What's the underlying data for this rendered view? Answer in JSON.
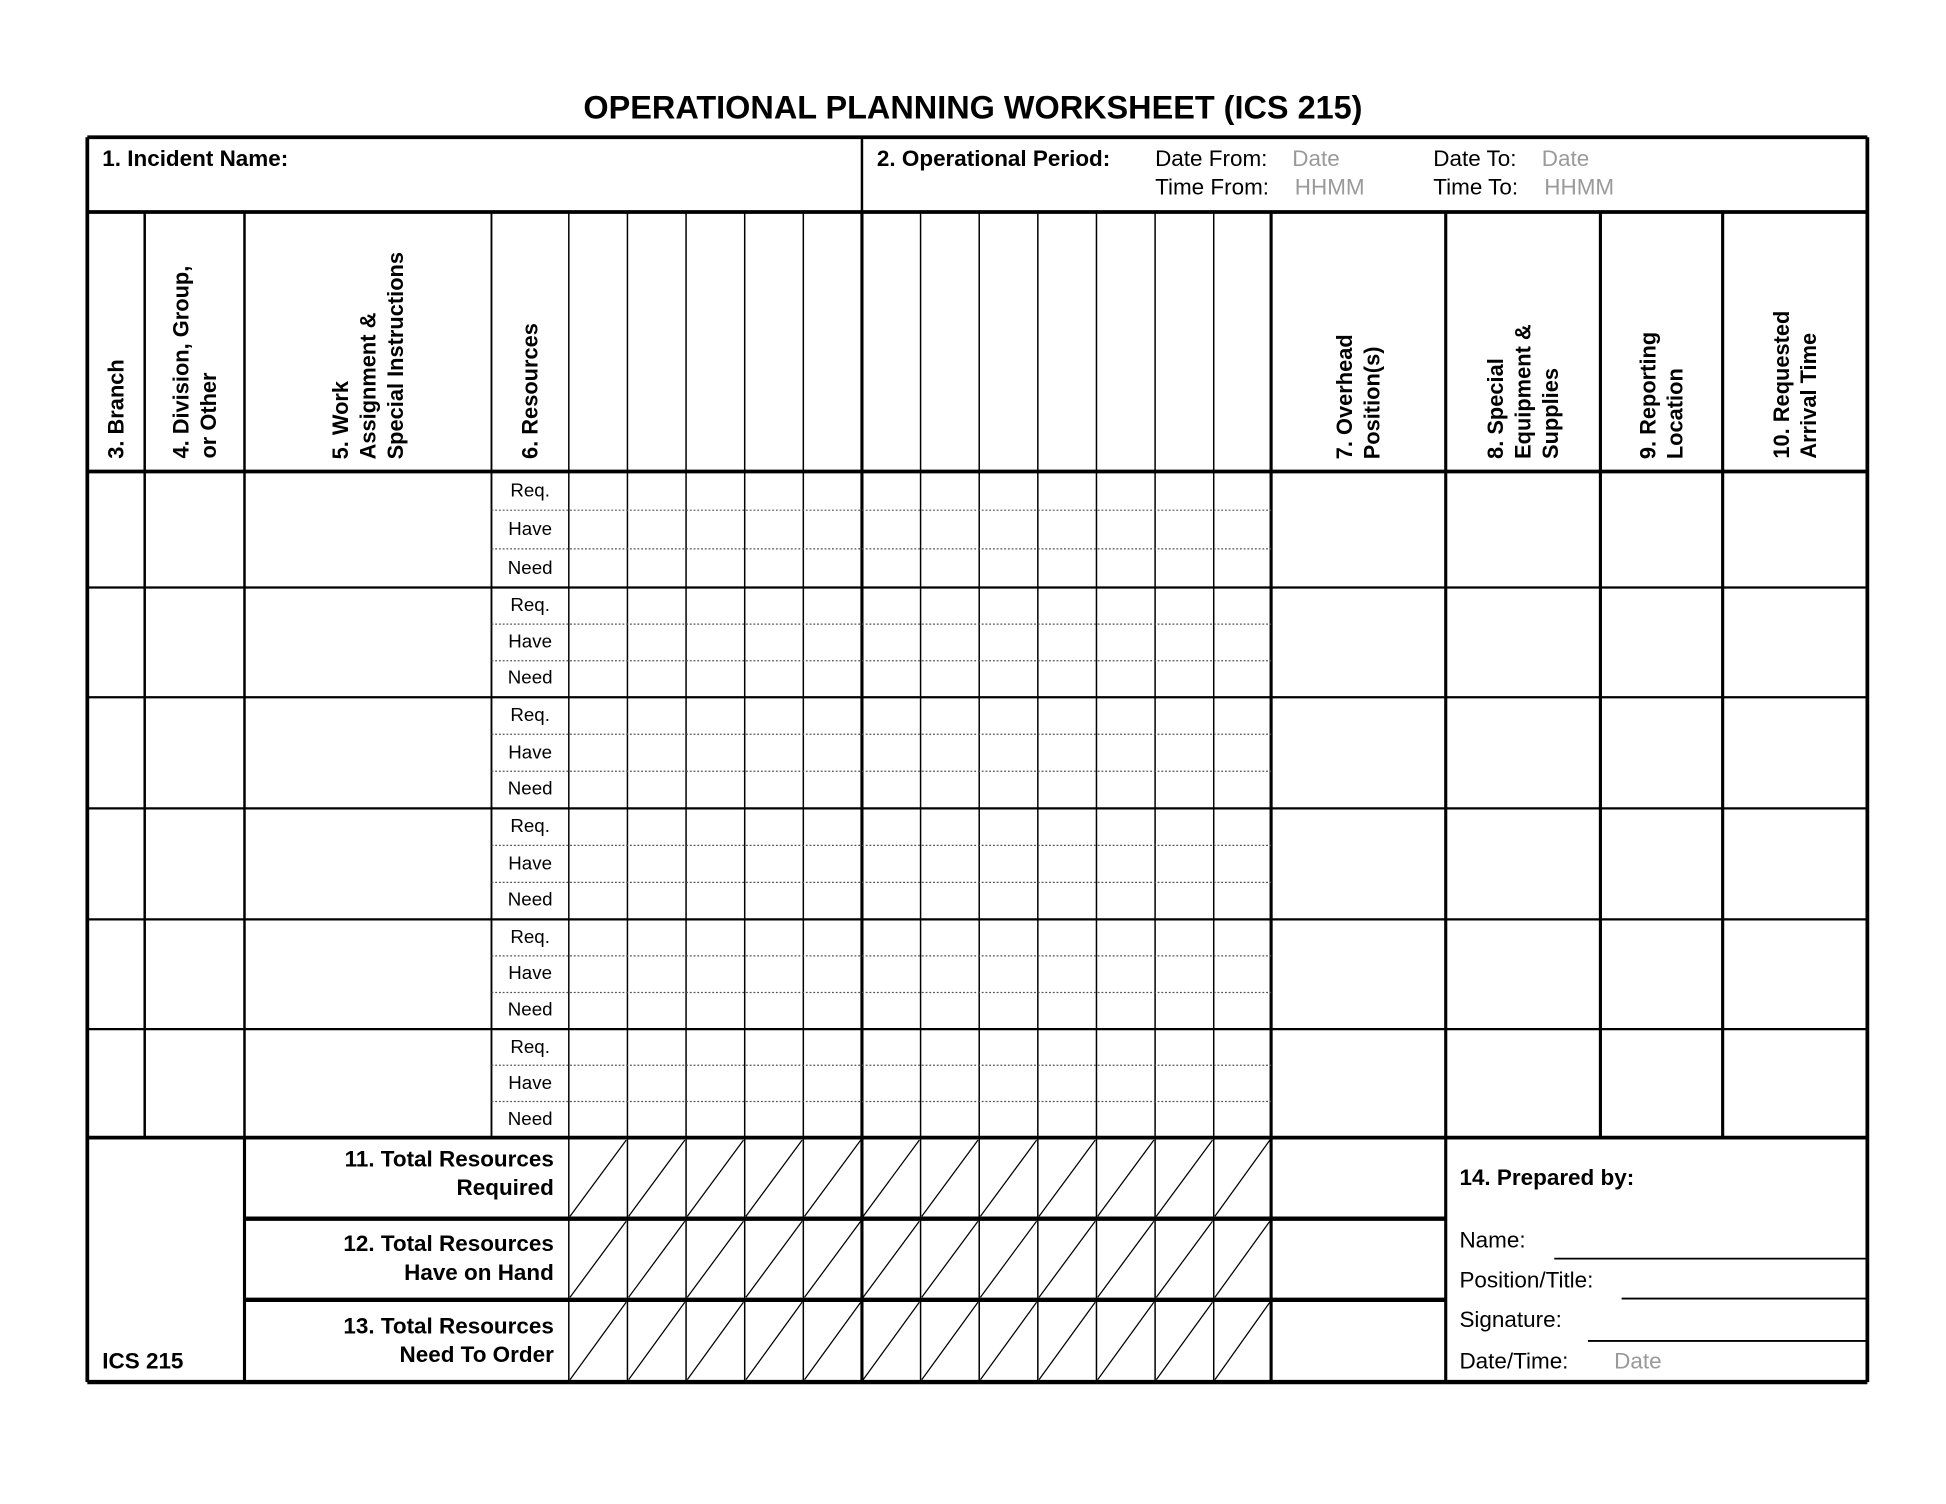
{
  "title": "OPERATIONAL PLANNING WORKSHEET (ICS 215)",
  "incident_name": {
    "label": "1. Incident Name:",
    "value": ""
  },
  "operational_period": {
    "label": "2. Operational Period:",
    "date_from_label": "Date From:",
    "date_from_placeholder": "Date",
    "date_to_label": "Date To:",
    "date_to_placeholder": "Date",
    "time_from_label": "Time From:",
    "time_from_placeholder": "HHMM",
    "time_to_label": "Time To:",
    "time_to_placeholder": "HHMM"
  },
  "columns": {
    "branch": "3. Branch",
    "division": "4. Division, Group,\nor Other",
    "work_assignment": "5. Work\nAssignment &\nSpecial Instructions",
    "resources": "6. Resources",
    "overhead": "7. Overhead\nPosition(s)",
    "special_equipment": "8. Special\nEquipment &\nSupplies",
    "reporting_location": "9. Reporting\nLocation",
    "requested_arrival": "10. Requested\nArrival Time"
  },
  "resource_row_labels": [
    "Req.",
    "Have",
    "Need"
  ],
  "assignment_rows": 6,
  "totals": {
    "required": "11. Total Resources\nRequired",
    "have_on_hand": "12. Total Resources\nHave on Hand",
    "need_to_order": "13. Total Resources\nNeed To Order"
  },
  "form_id": "ICS 215",
  "prepared_by": {
    "label": "14. Prepared by:",
    "name_label": "Name:",
    "position_label": "Position/Title:",
    "signature_label": "Signature:",
    "datetime_label": "Date/Time:",
    "datetime_placeholder": "Date"
  }
}
